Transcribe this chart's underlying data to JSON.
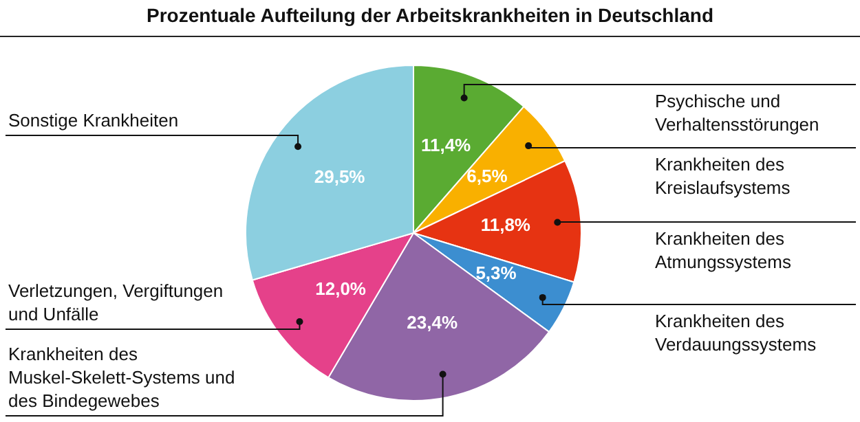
{
  "chart_data": {
    "type": "pie",
    "title": "Prozentuale Aufteilung der Arbeitskrankheiten in Deutschland",
    "categories": [
      "Psychische und Verhaltensstörungen",
      "Krankheiten des Kreislaufsystems",
      "Krankheiten des Atmungssystems",
      "Krankheiten des Verdauungssystems",
      "Krankheiten des Muskel-Skelett-Systems und des Bindegewebes",
      "Verletzungen, Vergiftungen und Unfälle",
      "Sonstige Krankheiten"
    ],
    "values": [
      11.4,
      6.5,
      11.8,
      5.3,
      23.4,
      12.0,
      29.5
    ],
    "value_labels": [
      "11,4%",
      "6,5%",
      "11,8%",
      "5,3%",
      "23,4%",
      "12,0%",
      "29,5%"
    ],
    "colors": [
      "#5aab32",
      "#f9b000",
      "#e63312",
      "#3c8ed0",
      "#9066a6",
      "#e5418a",
      "#8ccfe0"
    ]
  }
}
